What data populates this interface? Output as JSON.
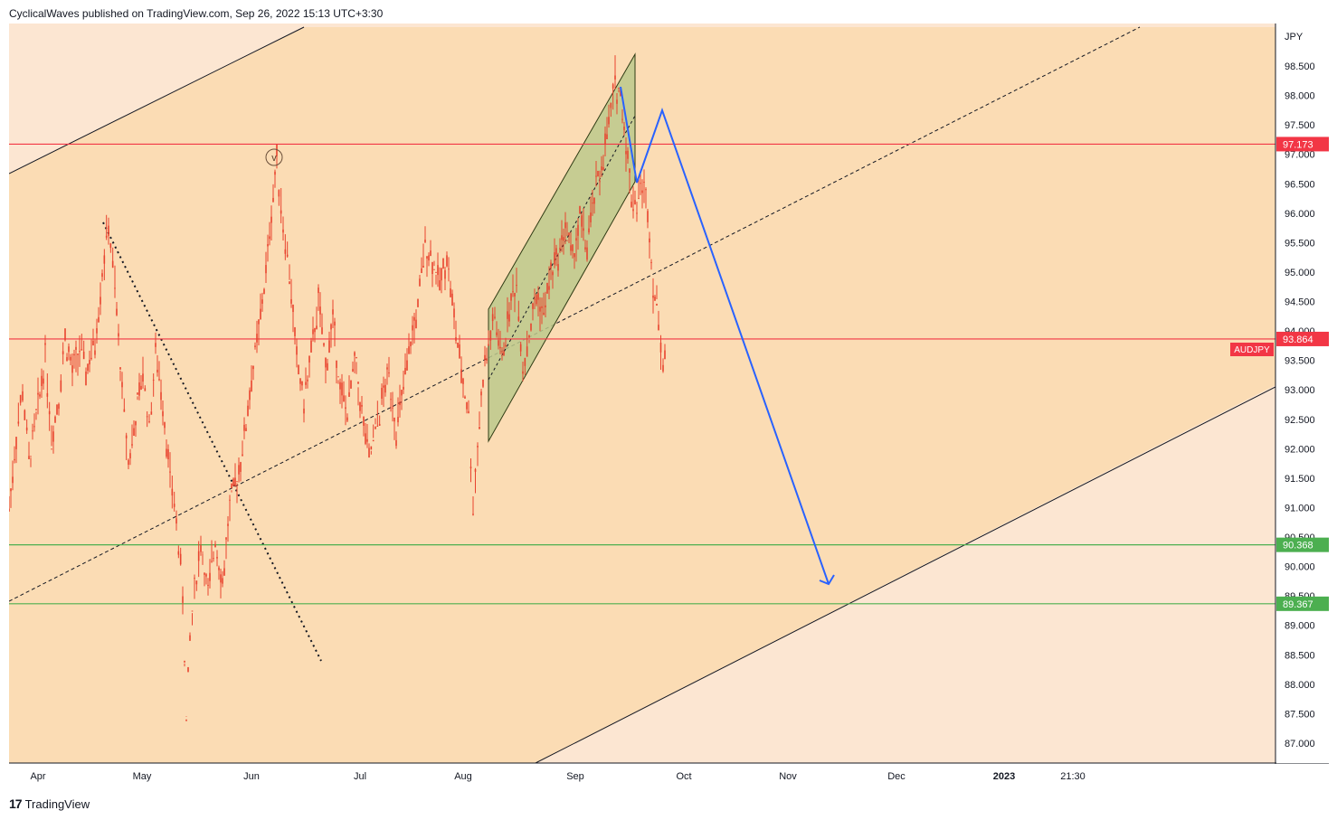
{
  "header": {
    "published_text": "CyclicalWaves published on TradingView.com, Sep 26, 2022 15:13 UTC+3:30"
  },
  "footer": {
    "logo_glyph": "17",
    "brand": "TradingView"
  },
  "chart_data": {
    "type": "candlestick",
    "symbol": "AUDJPY",
    "currency_label": "JPY",
    "y_ticks": [
      "98.500",
      "98.000",
      "97.500",
      "97.000",
      "96.500",
      "96.000",
      "95.500",
      "95.000",
      "94.500",
      "94.000",
      "93.500",
      "93.000",
      "92.500",
      "92.000",
      "91.500",
      "91.000",
      "90.500",
      "90.000",
      "89.500",
      "89.000",
      "88.500",
      "88.000",
      "87.500",
      "87.000"
    ],
    "x_ticks": [
      "Apr",
      "May",
      "Jun",
      "Jul",
      "Aug",
      "Sep",
      "Oct",
      "Nov",
      "Dec",
      "2023",
      "21:30"
    ],
    "ylim": [
      86.7,
      99.2
    ],
    "price_levels": [
      {
        "value": 97.173,
        "label": "97.173",
        "color": "#f23645"
      },
      {
        "value": 93.864,
        "label": "93.864",
        "color": "#f23645"
      },
      {
        "value": 90.368,
        "label": "90.368",
        "color": "#4caf50"
      },
      {
        "value": 89.367,
        "label": "89.367",
        "color": "#4caf50"
      }
    ],
    "symbol_tag": {
      "label": "AUDJPY",
      "color": "#f23645"
    },
    "wave_label": "v",
    "colors": {
      "channel_fill": "#fbdcb4",
      "outer_fill": "#fce6d2",
      "candle": "#e8432e",
      "rising_channel_fill": "#bcc98c",
      "projection": "#2962ff",
      "trendline": "#131722"
    },
    "price_path": [
      [
        0,
        91.0
      ],
      [
        8,
        92.2
      ],
      [
        15,
        93.0
      ],
      [
        22,
        91.8
      ],
      [
        30,
        92.5
      ],
      [
        40,
        93.6
      ],
      [
        47,
        92.2
      ],
      [
        55,
        92.9
      ],
      [
        62,
        93.9
      ],
      [
        70,
        93.3
      ],
      [
        78,
        93.7
      ],
      [
        85,
        93.3
      ],
      [
        95,
        93.8
      ],
      [
        103,
        95.0
      ],
      [
        110,
        95.8
      ],
      [
        117,
        94.7
      ],
      [
        125,
        93.0
      ],
      [
        132,
        91.8
      ],
      [
        140,
        92.5
      ],
      [
        148,
        93.3
      ],
      [
        155,
        92.4
      ],
      [
        162,
        93.6
      ],
      [
        170,
        92.8
      ],
      [
        178,
        91.5
      ],
      [
        185,
        90.8
      ],
      [
        192,
        89.5
      ],
      [
        196,
        87.4
      ],
      [
        200,
        88.8
      ],
      [
        205,
        89.6
      ],
      [
        212,
        90.4
      ],
      [
        220,
        89.5
      ],
      [
        228,
        90.5
      ],
      [
        236,
        89.7
      ],
      [
        244,
        91.0
      ],
      [
        252,
        91.5
      ],
      [
        260,
        92.2
      ],
      [
        268,
        93.2
      ],
      [
        276,
        94.0
      ],
      [
        284,
        95.0
      ],
      [
        290,
        96.0
      ],
      [
        296,
        96.9
      ],
      [
        303,
        95.8
      ],
      [
        310,
        95.0
      ],
      [
        318,
        93.5
      ],
      [
        326,
        92.8
      ],
      [
        334,
        93.6
      ],
      [
        342,
        94.5
      ],
      [
        350,
        93.4
      ],
      [
        358,
        94.2
      ],
      [
        366,
        93.0
      ],
      [
        374,
        92.6
      ],
      [
        382,
        93.5
      ],
      [
        390,
        92.6
      ],
      [
        398,
        91.8
      ],
      [
        405,
        92.3
      ],
      [
        412,
        92.8
      ],
      [
        420,
        93.3
      ],
      [
        428,
        92.3
      ],
      [
        436,
        93.0
      ],
      [
        444,
        93.8
      ],
      [
        452,
        94.4
      ],
      [
        460,
        95.5
      ],
      [
        468,
        95.2
      ],
      [
        476,
        94.8
      ],
      [
        484,
        95.3
      ],
      [
        492,
        94.2
      ],
      [
        500,
        93.3
      ],
      [
        508,
        92.6
      ],
      [
        513,
        91.0
      ],
      [
        518,
        92.1
      ],
      [
        524,
        93.2
      ],
      [
        530,
        93.8
      ],
      [
        537,
        94.2
      ],
      [
        545,
        93.5
      ],
      [
        553,
        94.4
      ],
      [
        561,
        94.8
      ],
      [
        568,
        93.4
      ],
      [
        575,
        93.9
      ],
      [
        583,
        94.6
      ],
      [
        591,
        94.3
      ],
      [
        599,
        95.0
      ],
      [
        607,
        95.3
      ],
      [
        615,
        95.8
      ],
      [
        623,
        95.2
      ],
      [
        631,
        95.9
      ],
      [
        639,
        95.4
      ],
      [
        647,
        96.3
      ],
      [
        655,
        96.8
      ],
      [
        663,
        97.5
      ],
      [
        670,
        98.2
      ],
      [
        676,
        98.0
      ],
      [
        682,
        97.2
      ],
      [
        688,
        96.3
      ],
      [
        694,
        96.2
      ],
      [
        700,
        96.5
      ],
      [
        706,
        96.1
      ],
      [
        712,
        94.8
      ],
      [
        718,
        94.2
      ],
      [
        723,
        93.5
      ],
      [
        727,
        93.7
      ]
    ],
    "annotations": {
      "rising_channel": {
        "description": "green shaded ascending channel Aug–Sep"
      },
      "projection_path": {
        "description": "blue projected wave path ending with arrow near 89.7"
      }
    }
  }
}
